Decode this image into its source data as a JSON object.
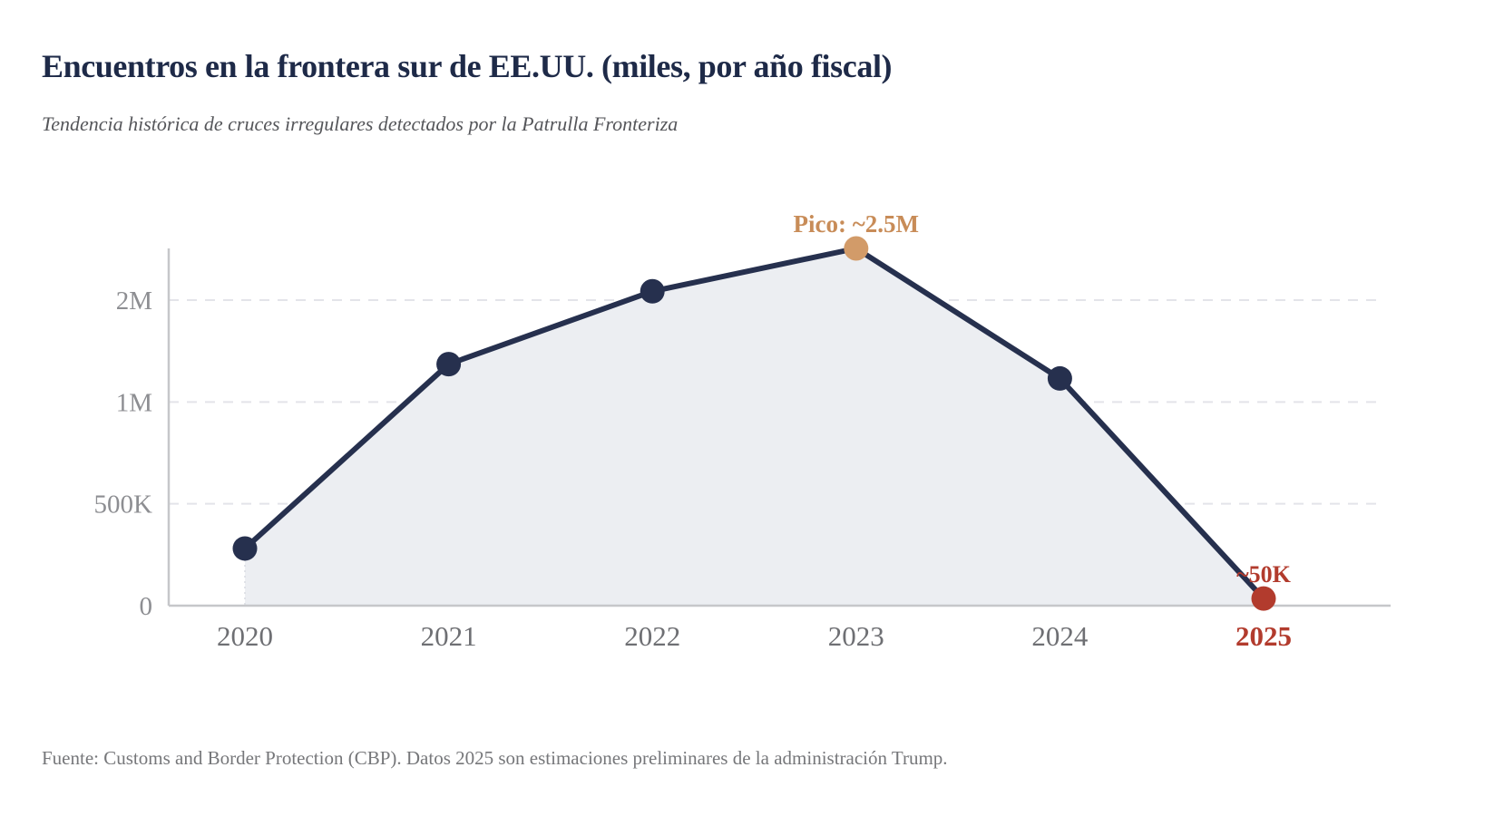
{
  "header": {
    "title": "Encuentros en la frontera sur de EE.UU. (miles, por año fiscal)",
    "subtitle": "Tendencia histórica de cruces irregulares detectados por la Patrulla Fronteriza"
  },
  "footer": {
    "source": "Fuente: Customs and Border Protection (CBP). Datos 2025 son estimaciones preliminares de la administración Trump."
  },
  "chart_data": {
    "type": "area",
    "title": "Encuentros en la frontera sur de EE.UU. (miles, por año fiscal)",
    "xlabel": "",
    "ylabel": "",
    "x": [
      "2020",
      "2021",
      "2022",
      "2023",
      "2024",
      "2025"
    ],
    "series": [
      {
        "name": "Encuentros en la frontera sur",
        "values": [
          400000,
          1690000,
          2200000,
          2500000,
          1590000,
          50000
        ]
      }
    ],
    "ylim": [
      0,
      2500000
    ],
    "y_ticks": [
      {
        "value": 0,
        "label": "0"
      },
      {
        "value": 500000,
        "label": "500K"
      },
      {
        "value": 1000000,
        "label": "1M"
      },
      {
        "value": 2000000,
        "label": "2M"
      }
    ],
    "y_tick_layout": "evenly-spaced gridlines",
    "grid": "dashed horizontal gridlines, on",
    "legend": "none",
    "highlight_x": "2025",
    "annotations": [
      {
        "x": "2023",
        "text": "Pico: ~2.5M",
        "style": "peak",
        "color": "#c88c58"
      },
      {
        "x": "2025",
        "text": "~50K",
        "style": "final",
        "color": "#b23b2d"
      }
    ],
    "colors": {
      "line": "#26304e",
      "area": "#eceef2",
      "area_edge": "#d9dbe2",
      "grid": "#e3e4e9",
      "axis": "#c6c7ca",
      "tick_label": "#8d8e92",
      "x_label": "#6e6f73",
      "x_label_highlight": "#b23b2d",
      "points": [
        "#26304e",
        "#26304e",
        "#26304e",
        "#d29b69",
        "#26304e",
        "#b23b2d"
      ],
      "title": "#1e2a48",
      "subtitle": "#55565a",
      "source": "#76777a"
    }
  }
}
